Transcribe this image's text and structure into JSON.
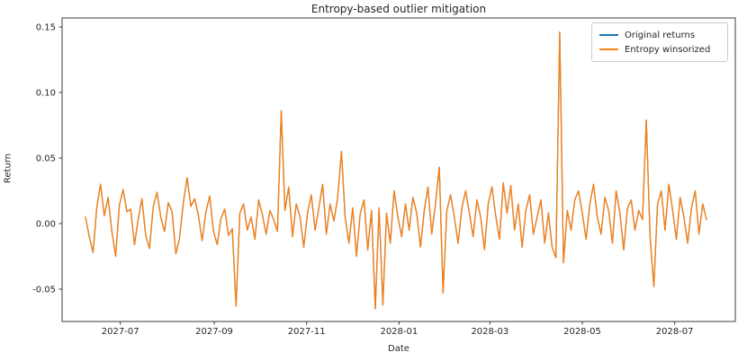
{
  "title": "Entropy-based outlier mitigation",
  "axes": {
    "xlabel": "Date",
    "ylabel": "Return",
    "x_tick_labels": [
      "2027-07",
      "2027-09",
      "2027-11",
      "2028-01",
      "2028-03",
      "2028-05",
      "2028-07"
    ],
    "x_tick_days": [
      23,
      85,
      146,
      207,
      267,
      328,
      389
    ],
    "y_tick_labels": [
      "-0.05",
      "0.00",
      "0.05",
      "0.10",
      "0.15"
    ],
    "y_tick_values": [
      -0.05,
      0.0,
      0.05,
      0.1,
      0.15
    ]
  },
  "legend": {
    "items": [
      {
        "label": "Original returns",
        "color": "#1f77b4"
      },
      {
        "label": "Entropy winsorized",
        "color": "#ff7f0e"
      }
    ]
  },
  "chart_data": {
    "type": "line",
    "title": "Entropy-based outlier mitigation",
    "xlabel": "Date",
    "ylabel": "Return",
    "x_start_date": "2027-06-08",
    "x_end_date": "2028-07-22",
    "x_span_days": 410,
    "n_points": 166,
    "ylim": [
      -0.075,
      0.16
    ],
    "grid": false,
    "legend_position": "upper right",
    "note": "Both series are visually identical; the blue 'Original returns' line is fully overlapped by the orange 'Entropy winsorized' line. Values below are evenly spaced in time from x_start_date to x_end_date.",
    "values": [
      0.005,
      -0.01,
      -0.022,
      0.012,
      0.03,
      0.006,
      0.02,
      -0.006,
      -0.025,
      0.014,
      0.026,
      0.009,
      0.011,
      -0.016,
      0.003,
      0.019,
      -0.009,
      -0.019,
      0.013,
      0.024,
      0.005,
      -0.006,
      0.016,
      0.009,
      -0.023,
      -0.011,
      0.016,
      0.035,
      0.013,
      0.019,
      0.006,
      -0.013,
      0.009,
      0.021,
      -0.006,
      -0.016,
      0.004,
      0.011,
      -0.009,
      -0.004,
      -0.063,
      0.008,
      0.015,
      -0.005,
      0.005,
      -0.012,
      0.018,
      0.007,
      -0.008,
      0.01,
      0.003,
      -0.006,
      0.086,
      0.01,
      0.028,
      -0.01,
      0.015,
      0.005,
      -0.018,
      0.008,
      0.022,
      -0.005,
      0.012,
      0.03,
      -0.008,
      0.015,
      0.002,
      0.02,
      0.055,
      0.005,
      -0.015,
      0.012,
      -0.025,
      0.008,
      0.018,
      -0.02,
      0.01,
      -0.065,
      0.012,
      -0.062,
      0.008,
      -0.015,
      0.025,
      0.005,
      -0.01,
      0.015,
      -0.005,
      0.02,
      0.008,
      -0.018,
      0.01,
      0.028,
      -0.008,
      0.015,
      0.043,
      -0.053,
      0.01,
      0.022,
      0.005,
      -0.015,
      0.012,
      0.025,
      0.008,
      -0.01,
      0.018,
      0.005,
      -0.02,
      0.015,
      0.028,
      0.006,
      -0.012,
      0.031,
      0.008,
      0.029,
      -0.005,
      0.015,
      -0.018,
      0.01,
      0.022,
      -0.008,
      0.005,
      0.018,
      -0.015,
      0.008,
      -0.018,
      -0.026,
      0.146,
      -0.03,
      0.01,
      -0.005,
      0.018,
      0.025,
      0.008,
      -0.012,
      0.015,
      0.03,
      0.005,
      -0.008,
      0.02,
      0.01,
      -0.015,
      0.025,
      0.008,
      -0.02,
      0.012,
      0.018,
      -0.005,
      0.01,
      0.003,
      0.079,
      -0.01,
      -0.048,
      0.015,
      0.025,
      -0.005,
      0.03,
      0.01,
      -0.012,
      0.02,
      0.005,
      -0.015,
      0.012,
      0.025,
      -0.008,
      0.015,
      0.003
    ],
    "series": [
      {
        "name": "Original returns",
        "color": "#1f77b4",
        "values_ref": "values"
      },
      {
        "name": "Entropy winsorized",
        "color": "#ff7f0e",
        "values_ref": "values"
      }
    ]
  }
}
